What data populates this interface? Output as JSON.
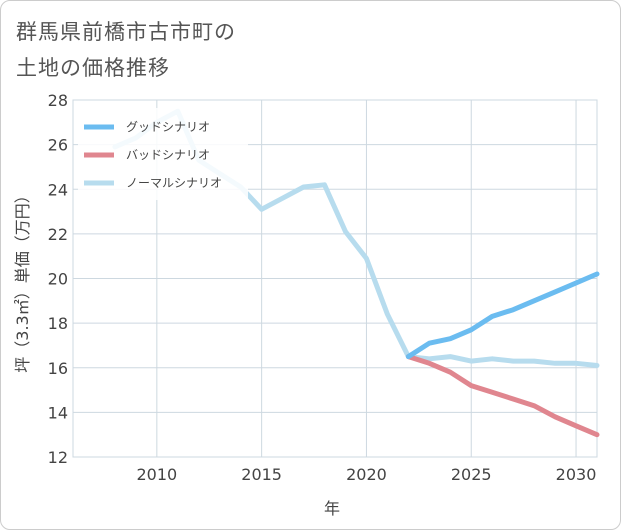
{
  "title_lines": [
    "群馬県前橋市古市町の",
    "土地の価格推移"
  ],
  "chart_data": {
    "type": "line",
    "title": "群馬県前橋市古市町の土地の価格推移",
    "xlabel": "年",
    "ylabel": "坪（3.3㎡）単価（万円）",
    "xlim": [
      2006,
      2031
    ],
    "ylim": [
      12,
      28
    ],
    "x_ticks": [
      2010,
      2015,
      2020,
      2025,
      2030
    ],
    "y_ticks": [
      12,
      14,
      16,
      18,
      20,
      22,
      24,
      26,
      28
    ],
    "grid": true,
    "legend_position": "top-left",
    "series": [
      {
        "name": "グッドシナリオ",
        "color": "#6bbcf0",
        "x": [
          2022,
          2023,
          2024,
          2025,
          2026,
          2027,
          2028,
          2029,
          2030,
          2031
        ],
        "y": [
          16.5,
          17.1,
          17.3,
          17.7,
          18.3,
          18.6,
          19.0,
          19.4,
          19.8,
          20.2
        ]
      },
      {
        "name": "バッドシナリオ",
        "color": "#e0868f",
        "x": [
          2022,
          2023,
          2024,
          2025,
          2026,
          2027,
          2028,
          2029,
          2030,
          2031
        ],
        "y": [
          16.5,
          16.2,
          15.8,
          15.2,
          14.9,
          14.6,
          14.3,
          13.8,
          13.4,
          13.0
        ]
      },
      {
        "name": "ノーマルシナリオ",
        "color": "#b7dcee",
        "x": [
          2008,
          2009,
          2010,
          2011,
          2012,
          2013,
          2014,
          2015,
          2016,
          2017,
          2018,
          2019,
          2020,
          2021,
          2022,
          2023,
          2024,
          2025,
          2026,
          2027,
          2028,
          2029,
          2030,
          2031
        ],
        "y": [
          25.9,
          26.3,
          27.0,
          27.5,
          25.3,
          24.7,
          24.1,
          23.1,
          23.6,
          24.1,
          24.2,
          22.1,
          20.9,
          18.4,
          16.5,
          16.4,
          16.5,
          16.3,
          16.4,
          16.3,
          16.3,
          16.2,
          16.2,
          16.1
        ]
      }
    ]
  }
}
